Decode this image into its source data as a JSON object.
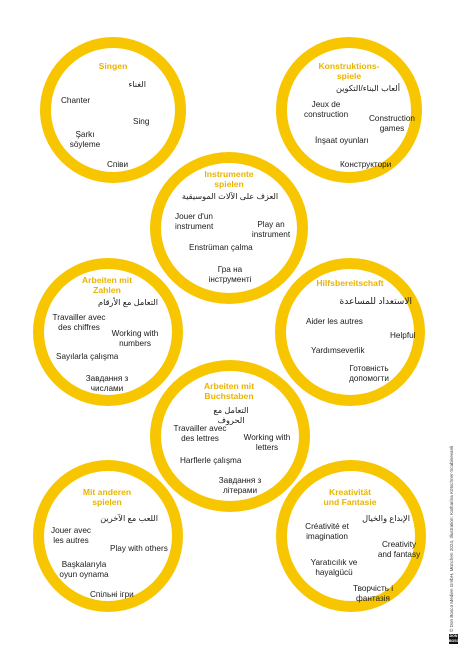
{
  "cards": {
    "singen": {
      "title": "Singen",
      "arabic": "الغناء",
      "fr": "Chanter",
      "en": "Sing",
      "tr": "Şarkı\nsöylemе",
      "uk": "Співи"
    },
    "konstruktionsspiele": {
      "title": "Konstruktions-\nspiele",
      "arabic": "ألعاب البناء/التكوين",
      "fr": "Jeux de\nconstruction",
      "en": "Construction\ngames",
      "tr": "İnşaat oyunları",
      "uk": "Конструктори"
    },
    "instrumente": {
      "title": "Instrumente\nspielen",
      "arabic": "العزف على الآلات الموسيقية",
      "fr": "Jouer d'un\ninstrument",
      "en": "Play an\ninstrument",
      "tr": "Enstrüman çalma",
      "uk": "Гра на\nінструменті"
    },
    "zahlen": {
      "title": "Arbeiten mit\nZahlen",
      "arabic": "التعامل مع الأرقام",
      "fr": "Travailler avec\ndes chiffres",
      "en": "Working with\nnumbers",
      "tr": "Sayılarla çalışma",
      "uk": "Завдання з\nчислами"
    },
    "hilfsbereitschaft": {
      "title": "Hilfsbereitschaft",
      "arabic": "الاستعداد للمساعدة",
      "fr": "Aider les autres",
      "en": "Helpful",
      "tr": "Yardımseverlik",
      "uk": "Готовність\nдопомогти"
    },
    "buchstaben": {
      "title": "Arbeiten mit\nBuchstaben",
      "arabic": "التعامل مع الحروف",
      "fr": "Travailler avec\ndes lettres",
      "en": "Working with\nletters",
      "tr": "Harflerle çalışma",
      "uk": "Завдання з\nлітерами"
    },
    "andere": {
      "title": "Mit anderen\nspielen",
      "arabic": "اللعب مع الآخرين",
      "fr": "Jouer avec\nles autres",
      "en": "Play with others",
      "tr": "Başkalarıyla\noyun oynama",
      "uk": "Спільні ігри"
    },
    "kreativitaet": {
      "title": "Kreativität\nund Fantasie",
      "arabic": "الإبداع والخيال",
      "fr": "Créativité et\nimagination",
      "en": "Creativity\nand fantasy",
      "tr": "Yaratıcılık ve\nhayalgücü",
      "uk": "Творчість і\nфантазія"
    }
  },
  "footer": {
    "credit": "© Don Bosco Medien GmbH, München 2024, Illustration: Katharina Kötschner-Scabinevanli",
    "logo": "DON BOSCO"
  },
  "colors": {
    "ring": "#f7c600",
    "title": "#e8b400",
    "text": "#1a1a1a"
  }
}
